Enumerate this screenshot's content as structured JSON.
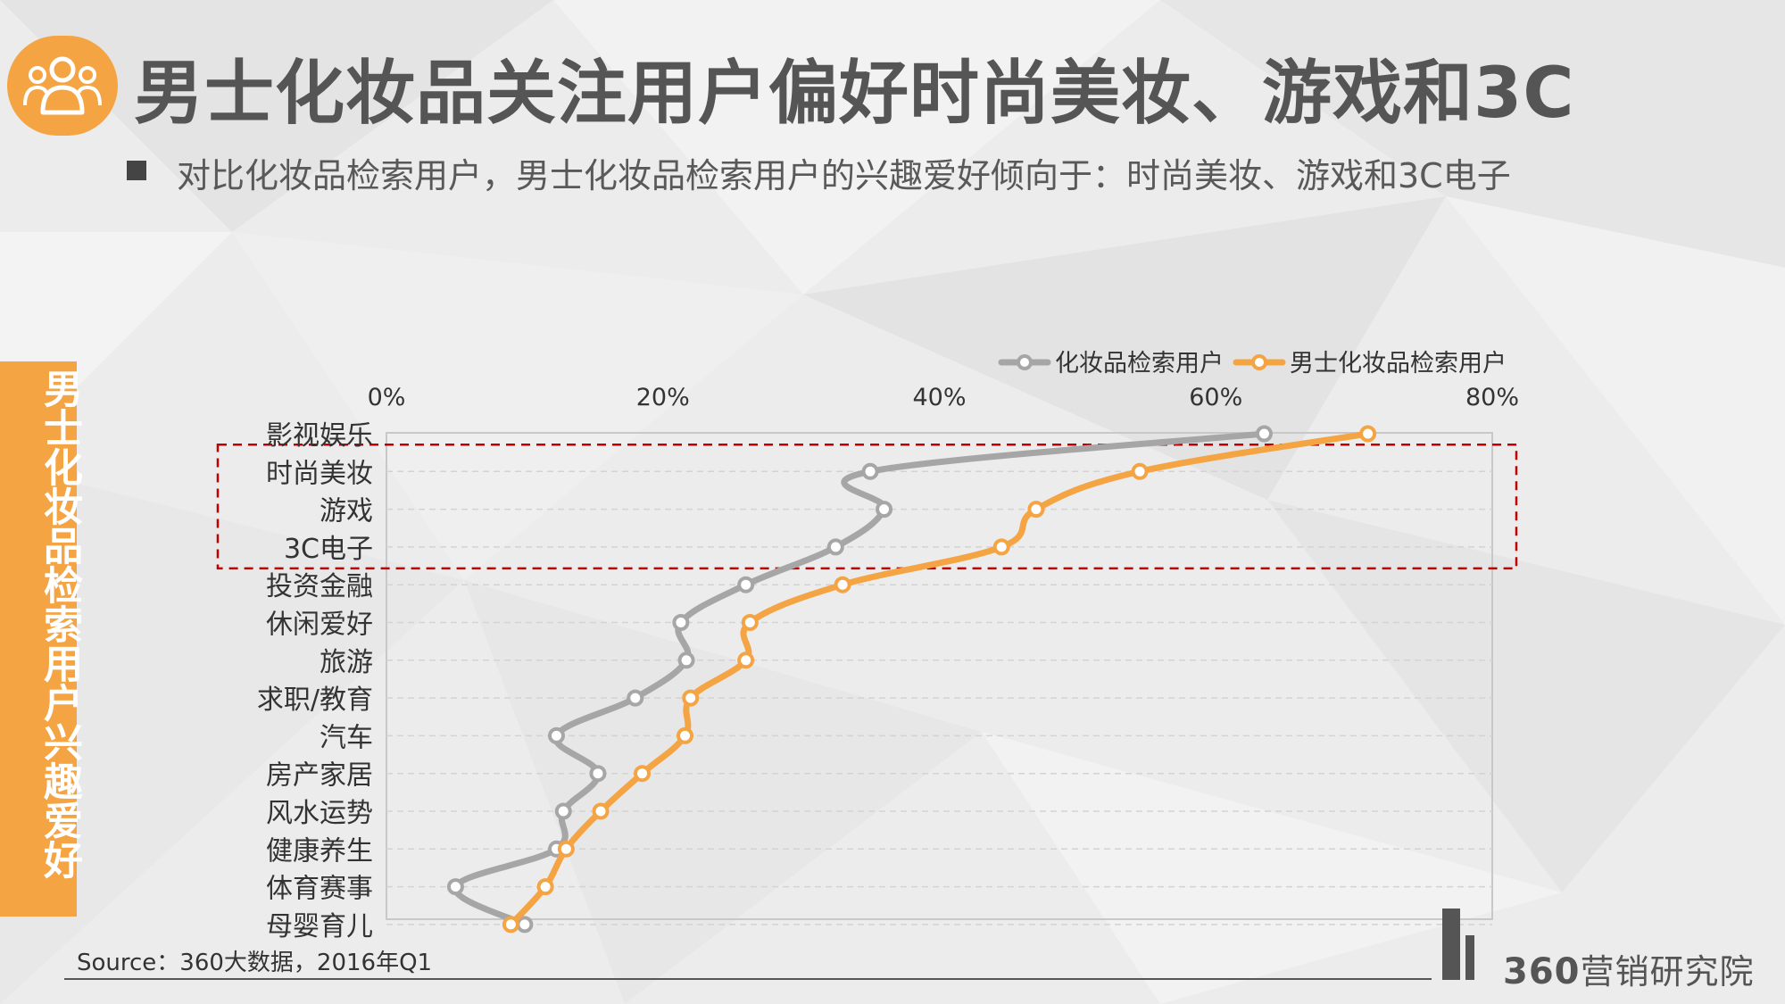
{
  "header": {
    "title": "男士化妆品关注用户偏好时尚美妆、游戏和3C",
    "subtitle": "对比化妆品检索用户，男士化妆品检索用户的兴趣爱好倾向于：时尚美妆、游戏和3C电子"
  },
  "side_label": "男士化妆品检索用户兴趣爱好",
  "footer": {
    "source": "Source：360大数据，2016年Q1",
    "brand_number": "360",
    "brand_text": "营销研究院"
  },
  "colors": {
    "accent": "#f4a442",
    "gray_series": "#a6a6a6",
    "highlight_box": "#c00000"
  },
  "icons": {
    "logo": "user-group-icon"
  },
  "chart_data": {
    "type": "line",
    "orientation": "horizontal",
    "categories": [
      "影视娱乐",
      "时尚美妆",
      "游戏",
      "3C电子",
      "投资金融",
      "休闲爱好",
      "旅游",
      "求职/教育",
      "汽车",
      "房产家居",
      "风水运势",
      "健康养生",
      "体育赛事",
      "母婴育儿"
    ],
    "series": [
      {
        "name": "化妆品检索用户",
        "color": "#a6a6a6",
        "values": [
          63.5,
          35,
          36,
          32.5,
          26,
          21.3,
          21.7,
          18,
          12.3,
          15.3,
          12.8,
          12.3,
          5,
          10
        ]
      },
      {
        "name": "男士化妆品检索用户",
        "color": "#f4a442",
        "values": [
          71,
          54.5,
          47,
          44.5,
          33,
          26.3,
          26,
          22,
          21.6,
          18.5,
          15.5,
          13,
          11.5,
          9
        ]
      }
    ],
    "xlim": [
      0,
      80
    ],
    "x_ticks": [
      "0%",
      "20%",
      "40%",
      "60%",
      "80%"
    ],
    "x_tick_values": [
      0,
      20,
      40,
      60,
      80
    ],
    "legend_position": "top-right",
    "grid": "horizontal dashed",
    "highlight": [
      "时尚美妆",
      "游戏",
      "3C电子"
    ]
  }
}
